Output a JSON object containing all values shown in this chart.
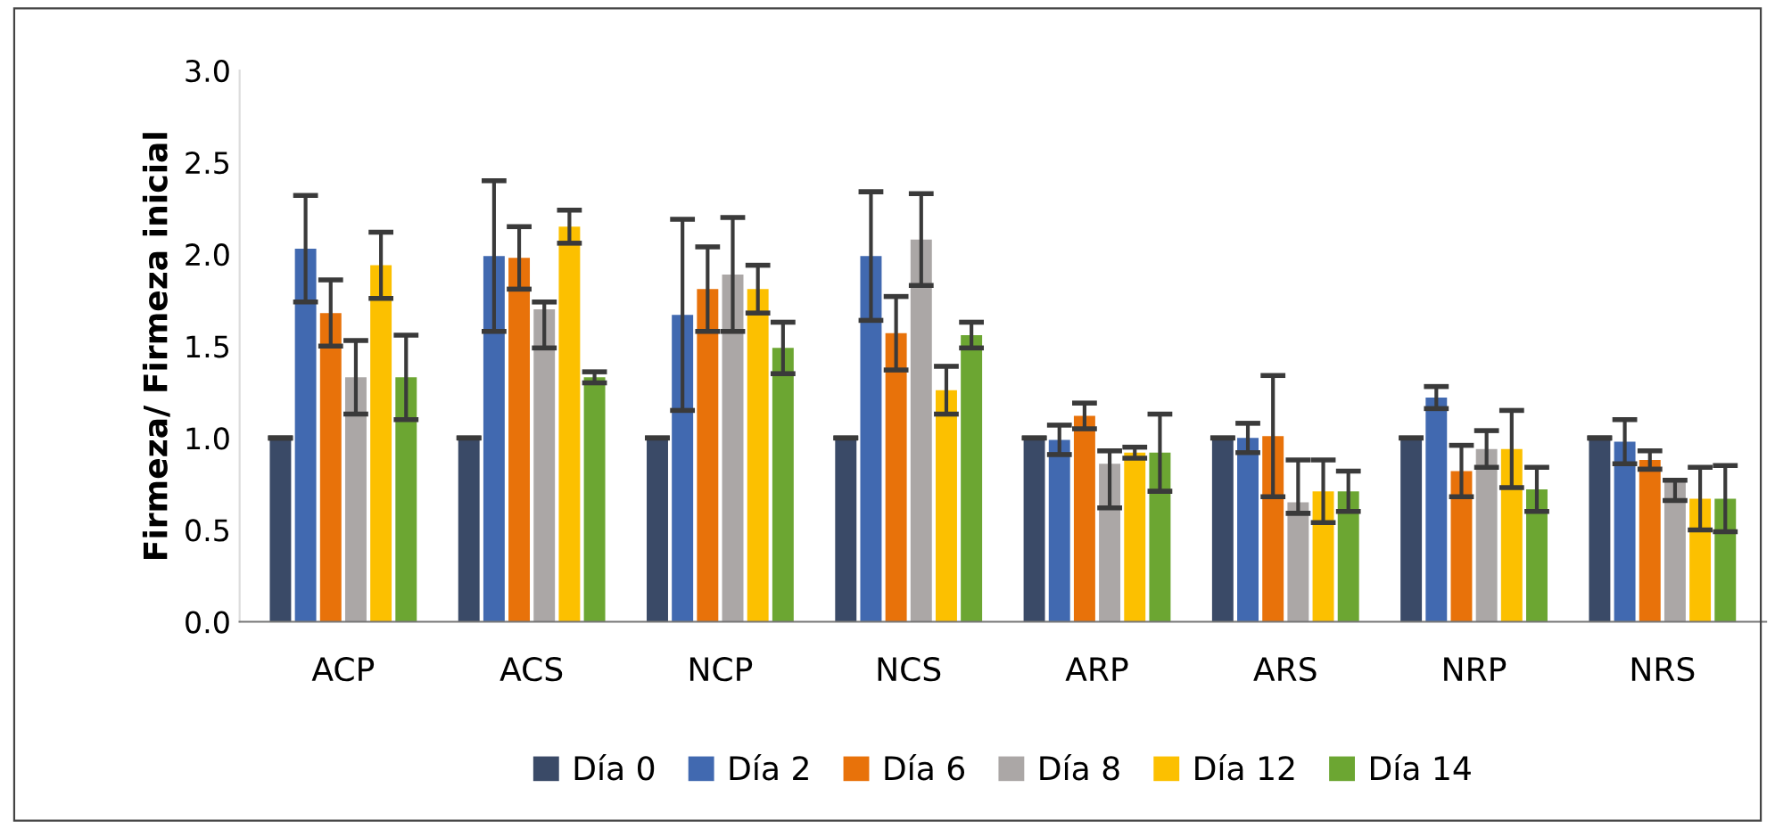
{
  "chart_data": {
    "type": "bar",
    "ylabel": "Firmeza/ Firmeza inicial",
    "categories": [
      "ACP",
      "ACS",
      "NCP",
      "NCS",
      "ARP",
      "ARS",
      "NRP",
      "NRS"
    ],
    "series": [
      {
        "name": "Día 0",
        "color": "#3a4a67",
        "values": [
          1.0,
          1.0,
          1.0,
          1.0,
          1.0,
          1.0,
          1.0,
          1.0
        ],
        "errors": [
          0,
          0,
          0,
          0,
          0,
          0,
          0,
          0
        ]
      },
      {
        "name": "Día 2",
        "color": "#4169b0",
        "values": [
          2.03,
          1.99,
          1.67,
          1.99,
          0.99,
          1.0,
          1.22,
          0.98
        ],
        "errors": [
          0.29,
          0.41,
          0.52,
          0.35,
          0.08,
          0.08,
          0.06,
          0.12
        ]
      },
      {
        "name": "Día 6",
        "color": "#e8720a",
        "values": [
          1.68,
          1.98,
          1.81,
          1.57,
          1.12,
          1.01,
          0.82,
          0.88
        ],
        "errors": [
          0.18,
          0.17,
          0.23,
          0.2,
          0.07,
          0.33,
          0.14,
          0.05
        ]
      },
      {
        "name": "Día 8",
        "color": "#aba7a6",
        "values": [
          1.33,
          1.7,
          1.89,
          2.08,
          0.86,
          0.65,
          0.94,
          0.76
        ],
        "errors": [
          0.2,
          [
            1.49,
            1.74
          ],
          0.31,
          0.25,
          [
            0.62,
            0.93
          ],
          [
            0.59,
            0.88
          ],
          0.1,
          [
            0.66,
            0.77
          ]
        ]
      },
      {
        "name": "Día 12",
        "color": "#fcc000",
        "values": [
          1.94,
          2.15,
          1.81,
          1.26,
          0.92,
          0.71,
          0.94,
          0.67
        ],
        "errors": [
          0.18,
          0.09,
          0.13,
          0.13,
          0.03,
          0.17,
          0.21,
          0.17
        ]
      },
      {
        "name": "Día 14",
        "color": "#6ca632",
        "values": [
          1.33,
          1.33,
          1.49,
          1.56,
          0.92,
          0.71,
          0.72,
          0.67
        ],
        "errors": [
          0.23,
          0.03,
          0.14,
          0.07,
          0.21,
          0.11,
          0.12,
          0.18
        ]
      }
    ],
    "ylim": [
      0,
      3.0
    ],
    "yticks": [
      {
        "value": 0,
        "label": "0.0"
      },
      {
        "value": 0.5,
        "label": "0.5"
      },
      {
        "value": 1.0,
        "label": "1.0"
      },
      {
        "value": 1.5,
        "label": "1.5"
      },
      {
        "value": 2.0,
        "label": "2.0"
      },
      {
        "value": 2.5,
        "label": "2.5"
      },
      {
        "value": 3.0,
        "label": "3.0"
      }
    ],
    "grid": false,
    "legend": "bottom"
  }
}
